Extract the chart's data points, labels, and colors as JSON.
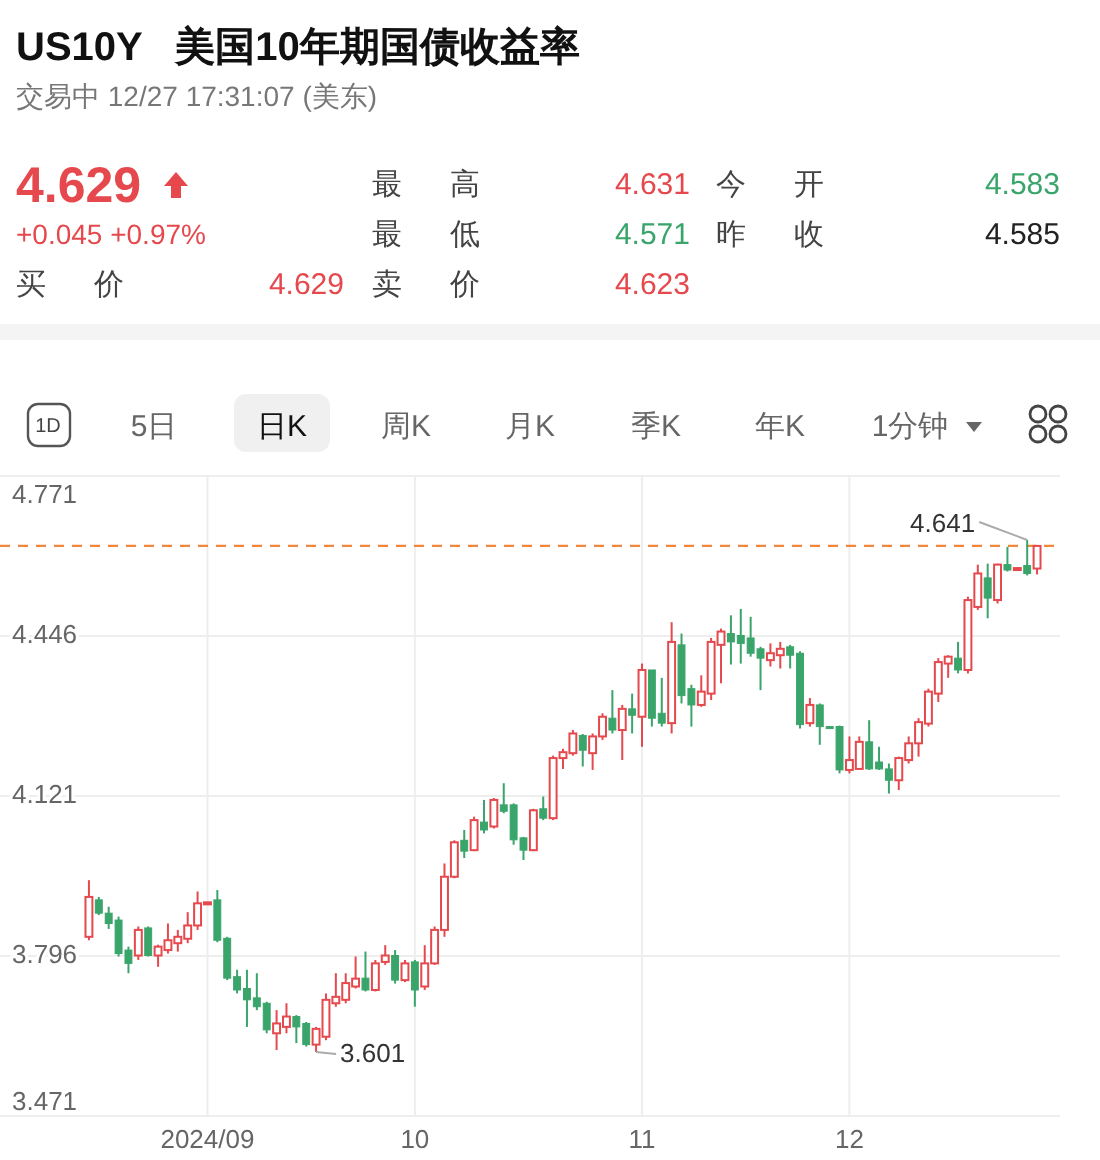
{
  "chart_data": {
    "type": "candlestick",
    "title": "US10Y   美国10年期国债收益率",
    "subtitle": "交易中 12/27 17:31:07 (美东)",
    "annotations": [
      "4.629",
      "+0.045 +0.97%",
      "最 高",
      "4.631",
      "今 开",
      "4.583",
      "最 低",
      "4.571",
      "昨 收",
      "4.585",
      "买 价",
      "4.629",
      "卖 价",
      "4.623",
      "1D",
      "5日",
      "日K",
      "周K",
      "月K",
      "季K",
      "年K",
      "1分钟",
      {
        "text": "4.641",
        "y": 4.641
      },
      "3.601"
    ],
    "categories": [
      null,
      null,
      null,
      null,
      null,
      null,
      null,
      null,
      null,
      null,
      null,
      null,
      "2024/09",
      null,
      null,
      null,
      null,
      null,
      null,
      null,
      null,
      null,
      null,
      null,
      null,
      null,
      null,
      null,
      null,
      null,
      null,
      null,
      null,
      "10",
      null,
      null,
      null,
      null,
      null,
      null,
      null,
      null,
      null,
      null,
      null,
      null,
      null,
      null,
      null,
      null,
      null,
      null,
      null,
      null,
      null,
      null,
      "11",
      null,
      null,
      null,
      null,
      null,
      null,
      null,
      null,
      null,
      null,
      null,
      null,
      null,
      null,
      null,
      null,
      null,
      null,
      null,
      null,
      "12",
      null,
      null,
      null,
      null,
      null,
      null,
      null,
      null,
      null,
      null,
      null,
      null,
      null,
      null,
      null,
      null,
      null,
      null,
      null
    ],
    "ohlc": [
      [
        3.835,
        3.95,
        3.828,
        3.916
      ],
      [
        3.91,
        3.916,
        3.879,
        3.883
      ],
      [
        3.883,
        3.896,
        3.851,
        3.862
      ],
      [
        3.869,
        3.876,
        3.795,
        3.801
      ],
      [
        3.808,
        3.815,
        3.761,
        3.781
      ],
      [
        3.797,
        3.856,
        3.788,
        3.849
      ],
      [
        3.853,
        3.856,
        3.795,
        3.797
      ],
      [
        3.797,
        3.819,
        3.774,
        3.815
      ],
      [
        3.808,
        3.862,
        3.801,
        3.828
      ],
      [
        3.822,
        3.849,
        3.805,
        3.835
      ],
      [
        3.831,
        3.885,
        3.822,
        3.858
      ],
      [
        3.858,
        3.927,
        3.849,
        3.903
      ],
      [
        3.903,
        3.906,
        3.902,
        3.905
      ],
      [
        3.91,
        3.93,
        3.824,
        3.828
      ],
      [
        3.832,
        3.835,
        3.747,
        3.751
      ],
      [
        3.754,
        3.768,
        3.72,
        3.727
      ],
      [
        3.73,
        3.768,
        3.652,
        3.707
      ],
      [
        3.711,
        3.761,
        3.686,
        3.693
      ],
      [
        3.7,
        3.703,
        3.639,
        3.646
      ],
      [
        3.639,
        3.686,
        3.605,
        3.659
      ],
      [
        3.652,
        3.7,
        3.639,
        3.673
      ],
      [
        3.673,
        3.676,
        3.619,
        3.652
      ],
      [
        3.659,
        3.662,
        3.612,
        3.616
      ],
      [
        3.616,
        3.652,
        3.601,
        3.648
      ],
      [
        3.632,
        3.72,
        3.625,
        3.707
      ],
      [
        3.7,
        3.761,
        3.693,
        3.713
      ],
      [
        3.707,
        3.761,
        3.7,
        3.741
      ],
      [
        3.734,
        3.795,
        3.73,
        3.75
      ],
      [
        3.751,
        3.805,
        3.724,
        3.727
      ],
      [
        3.727,
        3.788,
        3.724,
        3.781
      ],
      [
        3.784,
        3.818,
        3.778,
        3.797
      ],
      [
        3.797,
        3.808,
        3.74,
        3.747
      ],
      [
        3.747,
        3.788,
        3.743,
        3.781
      ],
      [
        3.784,
        3.788,
        3.693,
        3.727
      ],
      [
        3.734,
        3.818,
        3.727,
        3.781
      ],
      [
        3.781,
        3.856,
        3.778,
        3.849
      ],
      [
        3.849,
        3.984,
        3.835,
        3.957
      ],
      [
        3.957,
        4.031,
        3.954,
        4.027
      ],
      [
        4.031,
        4.052,
        3.995,
        4.009
      ],
      [
        4.011,
        4.079,
        4.009,
        4.072
      ],
      [
        4.068,
        4.113,
        4.045,
        4.052
      ],
      [
        4.059,
        4.117,
        4.055,
        4.113
      ],
      [
        4.103,
        4.147,
        4.086,
        4.09
      ],
      [
        4.103,
        4.106,
        4.022,
        4.032
      ],
      [
        4.036,
        4.038,
        3.991,
        4.011
      ],
      [
        4.011,
        4.095,
        4.009,
        4.092
      ],
      [
        4.095,
        4.12,
        4.072,
        4.076
      ],
      [
        4.076,
        4.203,
        4.072,
        4.198
      ],
      [
        4.198,
        4.217,
        4.176,
        4.21
      ],
      [
        4.208,
        4.255,
        4.203,
        4.248
      ],
      [
        4.244,
        4.247,
        4.181,
        4.214
      ],
      [
        4.208,
        4.248,
        4.174,
        4.242
      ],
      [
        4.242,
        4.289,
        4.235,
        4.282
      ],
      [
        4.279,
        4.336,
        4.248,
        4.255
      ],
      [
        4.255,
        4.306,
        4.194,
        4.298
      ],
      [
        4.298,
        4.329,
        4.248,
        4.285
      ],
      [
        4.282,
        4.39,
        4.221,
        4.377
      ],
      [
        4.377,
        4.377,
        4.262,
        4.279
      ],
      [
        4.289,
        4.361,
        4.262,
        4.269
      ],
      [
        4.269,
        4.474,
        4.248,
        4.434
      ],
      [
        4.428,
        4.451,
        4.309,
        4.325
      ],
      [
        4.339,
        4.347,
        4.262,
        4.306
      ],
      [
        4.306,
        4.366,
        4.302,
        4.333
      ],
      [
        4.329,
        4.442,
        4.316,
        4.434
      ],
      [
        4.428,
        4.461,
        4.35,
        4.455
      ],
      [
        4.451,
        4.488,
        4.388,
        4.434
      ],
      [
        4.447,
        4.501,
        4.39,
        4.431
      ],
      [
        4.442,
        4.485,
        4.404,
        4.411
      ],
      [
        4.42,
        4.424,
        4.336,
        4.401
      ],
      [
        4.397,
        4.431,
        4.384,
        4.411
      ],
      [
        4.407,
        4.434,
        4.38,
        4.42
      ],
      [
        4.424,
        4.428,
        4.38,
        4.407
      ],
      [
        4.411,
        4.415,
        4.258,
        4.266
      ],
      [
        4.269,
        4.32,
        4.262,
        4.306
      ],
      [
        4.306,
        4.309,
        4.225,
        4.262
      ],
      [
        4.262,
        4.263,
        4.259,
        4.26
      ],
      [
        4.262,
        4.264,
        4.167,
        4.174
      ],
      [
        4.174,
        4.242,
        4.167,
        4.194
      ],
      [
        4.176,
        4.242,
        4.174,
        4.231
      ],
      [
        4.231,
        4.275,
        4.174,
        4.176
      ],
      [
        4.19,
        4.221,
        4.174,
        4.176
      ],
      [
        4.176,
        4.187,
        4.126,
        4.153
      ],
      [
        4.153,
        4.201,
        4.133,
        4.198
      ],
      [
        4.194,
        4.242,
        4.187,
        4.228
      ],
      [
        4.228,
        4.279,
        4.201,
        4.271
      ],
      [
        4.268,
        4.339,
        4.262,
        4.333
      ],
      [
        4.329,
        4.401,
        4.312,
        4.393
      ],
      [
        4.39,
        4.407,
        4.361,
        4.404
      ],
      [
        4.401,
        4.434,
        4.37,
        4.377
      ],
      [
        4.377,
        4.526,
        4.37,
        4.519
      ],
      [
        4.505,
        4.591,
        4.499,
        4.573
      ],
      [
        4.564,
        4.593,
        4.482,
        4.523
      ],
      [
        4.519,
        4.593,
        4.512,
        4.591
      ],
      [
        4.591,
        4.627,
        4.577,
        4.58
      ],
      [
        4.582,
        4.585,
        4.58,
        4.584
      ],
      [
        4.589,
        4.641,
        4.569,
        4.573
      ],
      [
        4.583,
        4.631,
        4.571,
        4.629
      ]
    ],
    "colors": [
      "#e5484d",
      "#3aa56b",
      "#3aa56b",
      "#3aa56b",
      "#3aa56b",
      "#e5484d",
      "#3aa56b",
      "#e5484d",
      "#e5484d",
      "#e5484d",
      "#e5484d",
      "#e5484d",
      "#e5484d",
      "#3aa56b",
      "#3aa56b",
      "#3aa56b",
      "#3aa56b",
      "#3aa56b",
      "#3aa56b",
      "#e5484d",
      "#e5484d",
      "#3aa56b",
      "#3aa56b",
      "#e5484d",
      "#e5484d",
      "#e5484d",
      "#e5484d",
      "#e5484d",
      "#3aa56b",
      "#e5484d",
      "#e5484d",
      "#3aa56b",
      "#e5484d",
      "#3aa56b",
      "#e5484d",
      "#e5484d",
      "#e5484d",
      "#e5484d",
      "#3aa56b",
      "#e5484d",
      "#3aa56b",
      "#e5484d",
      "#3aa56b",
      "#3aa56b",
      "#3aa56b",
      "#e5484d",
      "#3aa56b",
      "#e5484d",
      "#e5484d",
      "#e5484d",
      "#3aa56b",
      "#e5484d",
      "#e5484d",
      "#3aa56b",
      "#e5484d",
      "#3aa56b",
      "#e5484d",
      "#3aa56b",
      "#3aa56b",
      "#e5484d",
      "#3aa56b",
      "#3aa56b",
      "#e5484d",
      "#e5484d",
      "#e5484d",
      "#3aa56b",
      "#3aa56b",
      "#3aa56b",
      "#3aa56b",
      "#e5484d",
      "#e5484d",
      "#3aa56b",
      "#3aa56b",
      "#e5484d",
      "#3aa56b",
      "#3aa56b",
      "#3aa56b",
      "#e5484d",
      "#e5484d",
      "#3aa56b",
      "#3aa56b",
      "#3aa56b",
      "#e5484d",
      "#e5484d",
      "#e5484d",
      "#e5484d",
      "#e5484d",
      "#e5484d",
      "#3aa56b",
      "#e5484d",
      "#e5484d",
      "#3aa56b",
      "#e5484d",
      "#3aa56b",
      "#e5484d",
      "#3aa56b",
      "#e5484d"
    ],
    "ylim": [
      3.471,
      4.771
    ],
    "yticks": [
      4.771,
      4.446,
      4.121,
      3.796,
      3.471
    ],
    "grid": true,
    "ref_lines": [
      {
        "axis": "y",
        "value": 4.629,
        "color": "#f0873a",
        "line_style": "dashed"
      }
    ]
  }
}
